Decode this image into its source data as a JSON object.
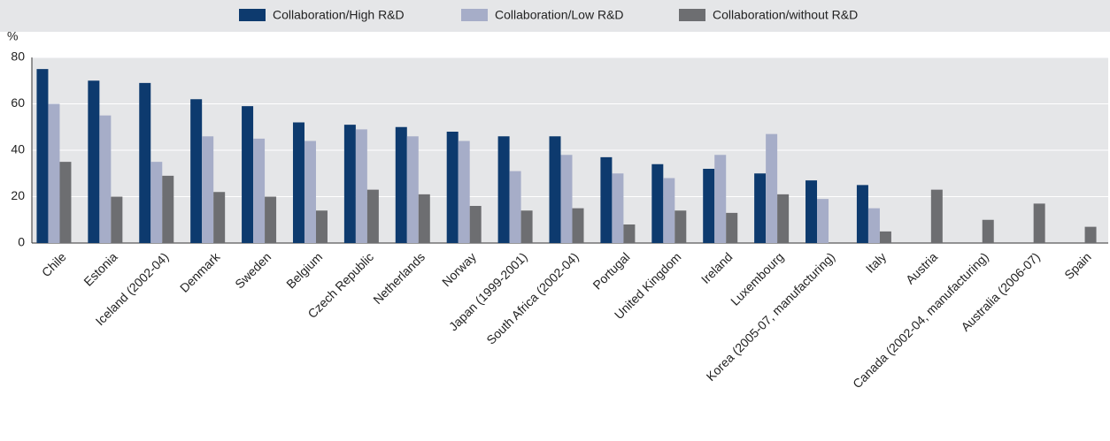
{
  "chart_data": {
    "type": "bar",
    "y_axis_label": "%",
    "categories": [
      "Chile",
      "Estonia",
      "Iceland (2002-04)",
      "Denmark",
      "Sweden",
      "Belgium",
      "Czech Republic",
      "Netherlands",
      "Norway",
      "Japan (1999-2001)",
      "South Africa (2002-04)",
      "Portugal",
      "United Kingdom",
      "Ireland",
      "Luxembourg",
      "Korea (2005-07, manufacturing)",
      "Italy",
      "Austria",
      "Canada (2002-04, manufacturing)",
      "Australia (2006-07)",
      "Spain"
    ],
    "series": [
      {
        "name": "Collaboration/High R&D",
        "color": "#0d3a6e",
        "values": [
          75,
          70,
          69,
          62,
          59,
          52,
          51,
          50,
          48,
          46,
          46,
          37,
          34,
          32,
          30,
          27,
          25,
          null,
          null,
          null,
          null
        ]
      },
      {
        "name": "Collaboration/Low R&D",
        "color": "#a6adc8",
        "values": [
          60,
          55,
          35,
          46,
          45,
          44,
          49,
          46,
          44,
          31,
          38,
          30,
          28,
          38,
          47,
          19,
          15,
          null,
          null,
          null,
          null
        ]
      },
      {
        "name": "Collaboration/without R&D",
        "color": "#6d6e71",
        "values": [
          35,
          20,
          29,
          22,
          20,
          14,
          23,
          21,
          16,
          14,
          15,
          8,
          14,
          13,
          21,
          null,
          5,
          23,
          10,
          17,
          7
        ]
      }
    ],
    "ylim": [
      0,
      80
    ],
    "yticks": [
      0,
      20,
      40,
      60,
      80
    ],
    "grid": true,
    "legend": "top"
  }
}
